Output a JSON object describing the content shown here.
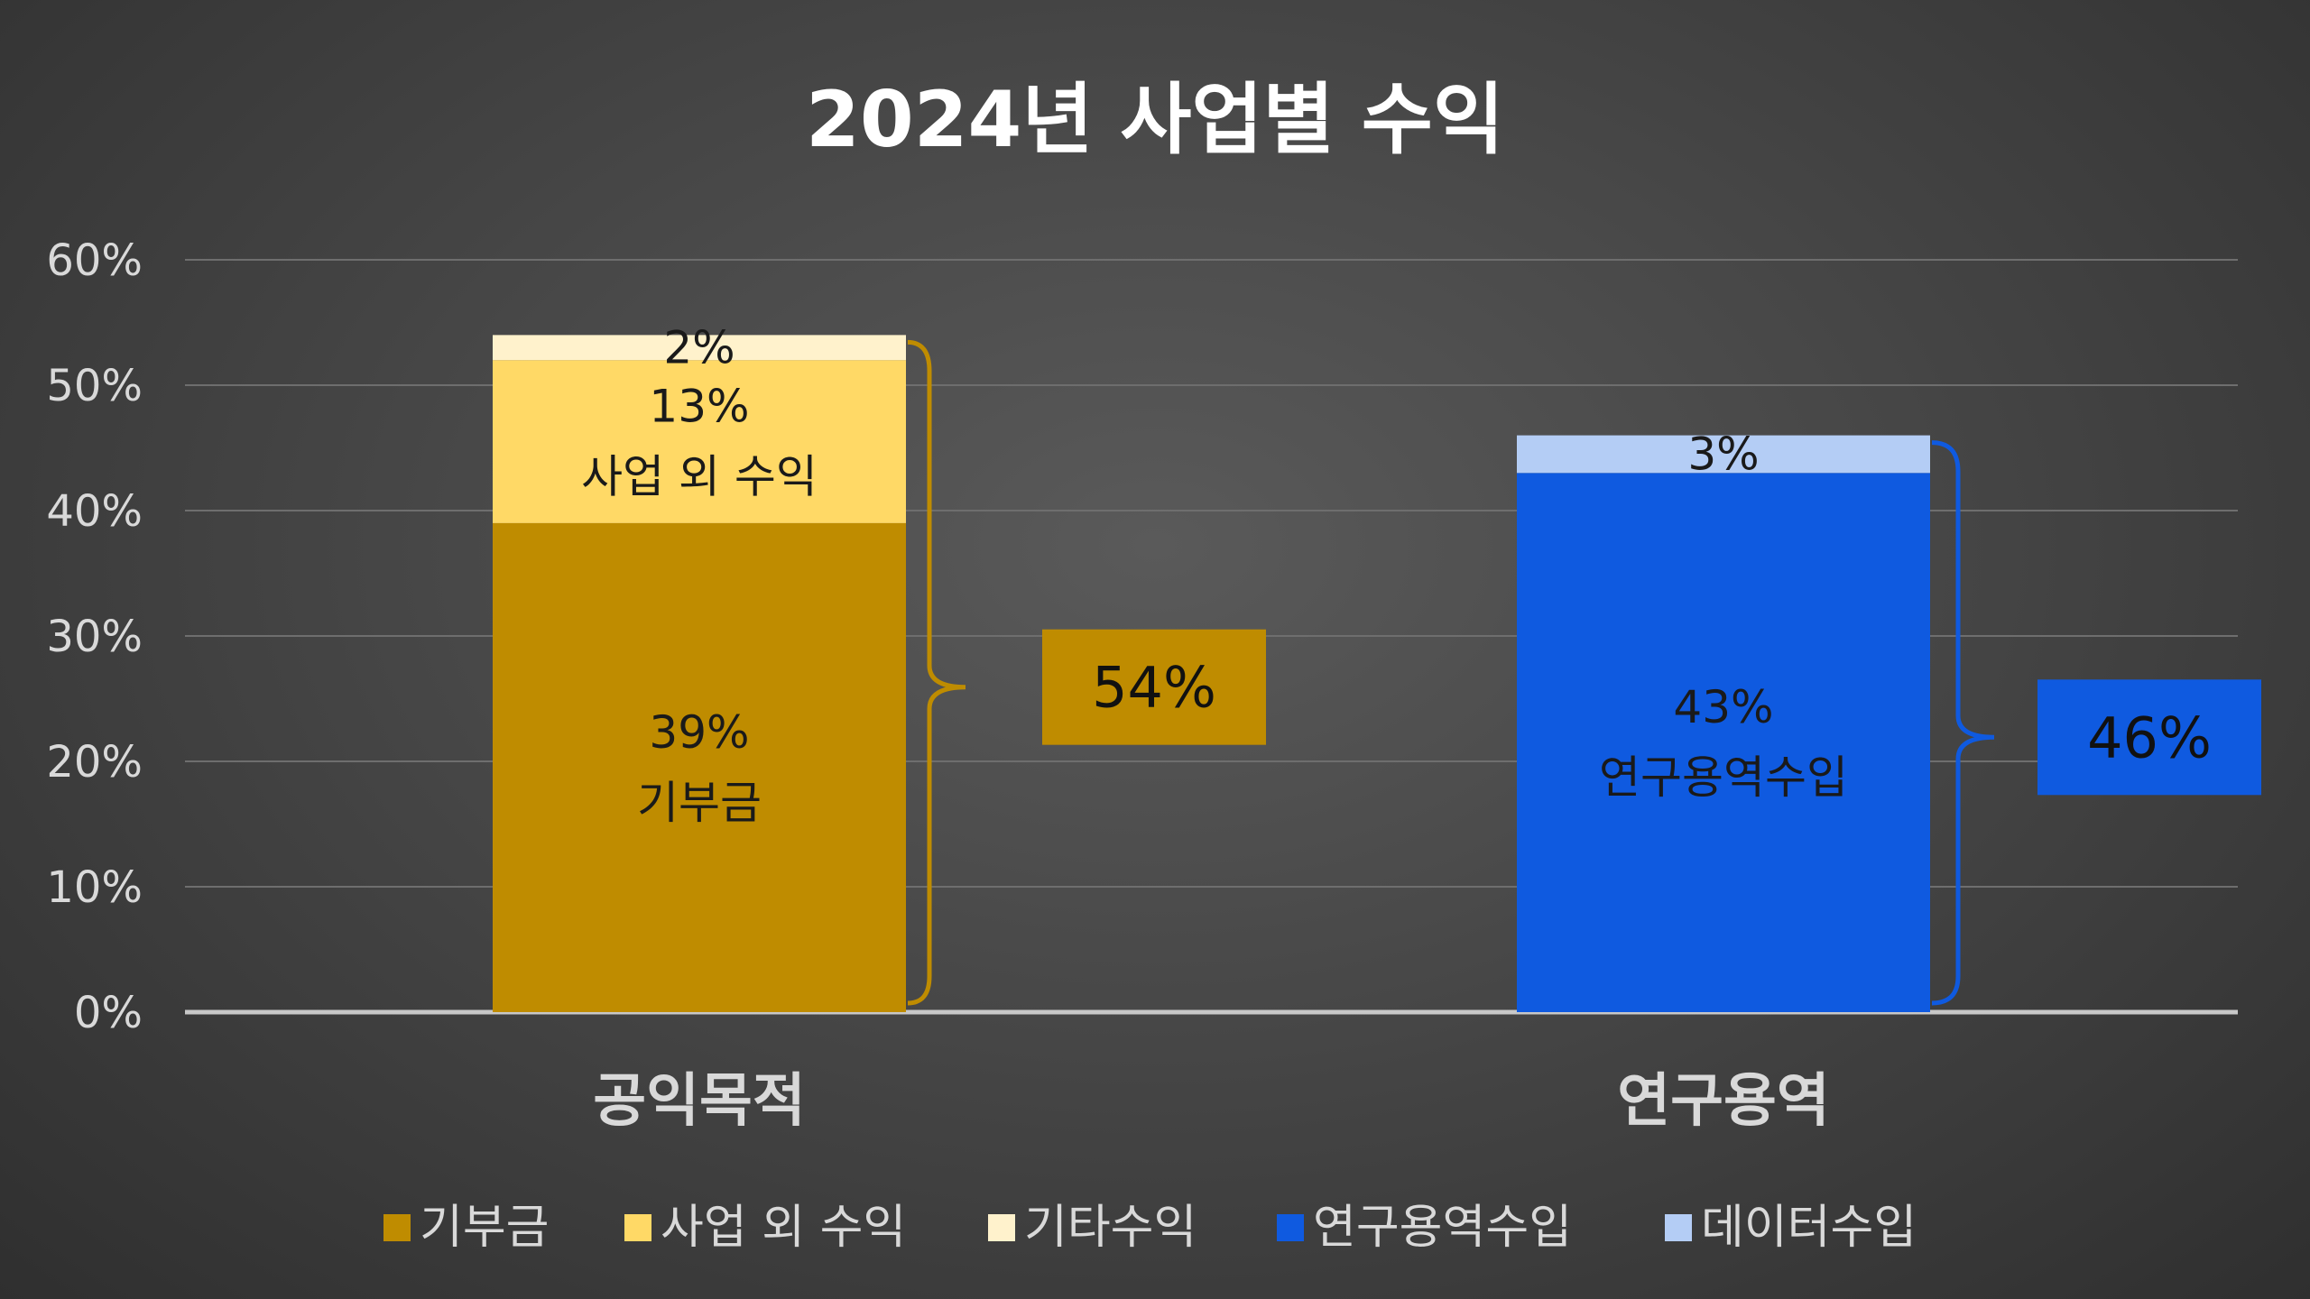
{
  "chart_data": {
    "type": "bar",
    "stacked": true,
    "title": "2024년 사업별 수익",
    "ylim": [
      0,
      60
    ],
    "y_ticks": [
      "0%",
      "10%",
      "20%",
      "30%",
      "40%",
      "50%",
      "60%"
    ],
    "grid": true,
    "categories": [
      "공익목적",
      "연구용역"
    ],
    "series": [
      {
        "name": "기부금",
        "values": [
          39,
          0
        ],
        "color": "#bf8c00",
        "labels": [
          "39%\n기부금",
          ""
        ]
      },
      {
        "name": "사업 외 수익",
        "values": [
          13,
          0
        ],
        "color": "#ffd966",
        "labels": [
          "13%\n사업 외 수익",
          ""
        ]
      },
      {
        "name": "기타수익",
        "values": [
          2,
          0
        ],
        "color": "#fff2cc",
        "labels": [
          "2%",
          ""
        ]
      },
      {
        "name": "연구용역수입",
        "values": [
          0,
          43
        ],
        "color": "#0f5ae0",
        "labels": [
          "",
          "43%\n연구용역수입"
        ]
      },
      {
        "name": "데이터수입",
        "values": [
          0,
          3
        ],
        "color": "#b4cdf5",
        "labels": [
          "",
          "3%"
        ]
      }
    ],
    "totals": [
      {
        "category": "공익목적",
        "label": "54%",
        "color": "#bf8c00"
      },
      {
        "category": "연구용역",
        "label": "46%",
        "color": "#0f5ae0"
      }
    ],
    "legend_position": "bottom"
  }
}
